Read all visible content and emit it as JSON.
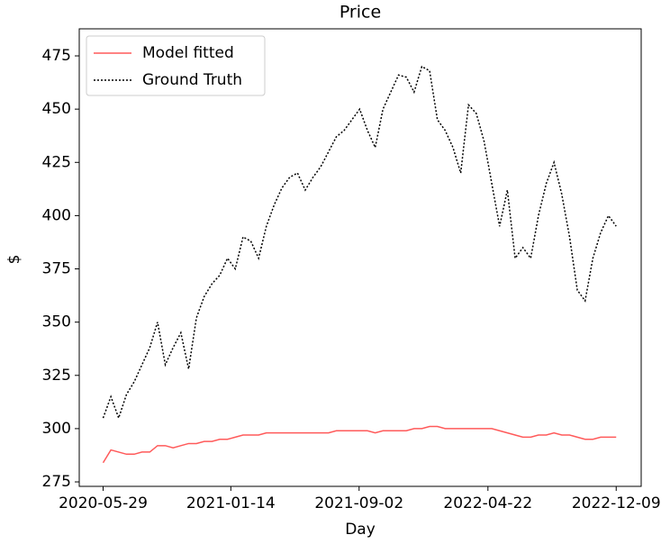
{
  "chart_data": {
    "type": "line",
    "title": "Price",
    "xlabel": "Day",
    "ylabel": "$",
    "x": [
      "2020-05-29",
      "2020-06-12",
      "2020-06-26",
      "2020-07-10",
      "2020-07-24",
      "2020-08-07",
      "2020-08-21",
      "2020-09-04",
      "2020-09-18",
      "2020-10-02",
      "2020-10-16",
      "2020-10-30",
      "2020-11-13",
      "2020-11-27",
      "2020-12-11",
      "2020-12-25",
      "2021-01-08",
      "2021-01-22",
      "2021-02-05",
      "2021-02-19",
      "2021-03-05",
      "2021-03-19",
      "2021-04-02",
      "2021-04-16",
      "2021-04-30",
      "2021-05-14",
      "2021-05-28",
      "2021-06-11",
      "2021-06-25",
      "2021-07-09",
      "2021-07-23",
      "2021-08-06",
      "2021-08-20",
      "2021-09-03",
      "2021-09-17",
      "2021-10-01",
      "2021-10-15",
      "2021-10-29",
      "2021-11-12",
      "2021-11-26",
      "2021-12-10",
      "2021-12-24",
      "2022-01-07",
      "2022-01-21",
      "2022-02-04",
      "2022-02-18",
      "2022-03-04",
      "2022-03-18",
      "2022-04-01",
      "2022-04-15",
      "2022-04-29",
      "2022-05-13",
      "2022-05-27",
      "2022-06-10",
      "2022-06-24",
      "2022-07-08",
      "2022-07-22",
      "2022-08-05",
      "2022-08-19",
      "2022-09-02",
      "2022-09-16",
      "2022-09-30",
      "2022-10-14",
      "2022-10-28",
      "2022-11-11",
      "2022-11-25",
      "2022-12-09"
    ],
    "series": [
      {
        "name": "Model fitted",
        "color": "#ff5a5a",
        "linestyle": "solid",
        "values": [
          284,
          290,
          289,
          288,
          288,
          289,
          289,
          292,
          292,
          291,
          292,
          293,
          293,
          294,
          294,
          295,
          295,
          296,
          297,
          297,
          297,
          298,
          298,
          298,
          298,
          298,
          298,
          298,
          298,
          298,
          299,
          299,
          299,
          299,
          299,
          298,
          299,
          299,
          299,
          299,
          300,
          300,
          301,
          301,
          300,
          300,
          300,
          300,
          300,
          300,
          300,
          299,
          298,
          297,
          296,
          296,
          297,
          297,
          298,
          297,
          297,
          296,
          295,
          295,
          296,
          296,
          296
        ]
      },
      {
        "name": "Ground Truth",
        "color": "#000000",
        "linestyle": "dotted",
        "values": [
          305,
          315,
          305,
          316,
          322,
          330,
          338,
          350,
          330,
          338,
          345,
          328,
          352,
          362,
          368,
          372,
          380,
          375,
          390,
          388,
          380,
          395,
          405,
          413,
          418,
          420,
          412,
          418,
          423,
          430,
          437,
          440,
          445,
          450,
          440,
          432,
          450,
          458,
          466,
          465,
          458,
          470,
          468,
          445,
          440,
          432,
          420,
          452,
          448,
          435,
          415,
          395,
          412,
          380,
          385,
          380,
          400,
          415,
          425,
          410,
          390,
          365,
          360,
          380,
          392,
          400,
          395
        ]
      }
    ],
    "xlim": [
      "2020-04-16",
      "2023-01-23"
    ],
    "xticks": [
      "2020-05-29",
      "2021-01-14",
      "2021-09-02",
      "2022-04-22",
      "2022-12-09"
    ],
    "ylim": [
      272.9,
      487.7
    ],
    "yticks": [
      275,
      300,
      325,
      350,
      375,
      400,
      425,
      450,
      475
    ],
    "legend": "upper left"
  }
}
